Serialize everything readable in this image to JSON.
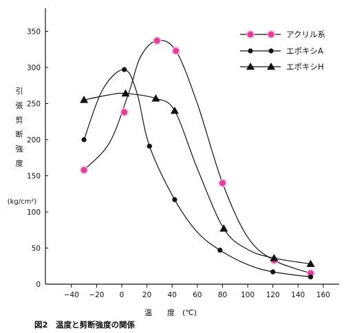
{
  "chart_data": {
    "type": "line",
    "title": "",
    "caption": "図2　温度と剪断強度の関係",
    "xlabel": "温　　度　(℃)",
    "ylabel": "引張剪断強度",
    "ylabel_chars": [
      "引",
      "張",
      "剪",
      "断",
      "強",
      "度"
    ],
    "yunit": "(kg/cm²)",
    "xlim": [
      -50,
      170
    ],
    "ylim": [
      0,
      370
    ],
    "xticks": [
      -40,
      -20,
      0,
      20,
      40,
      60,
      80,
      100,
      120,
      140,
      160
    ],
    "xtick_labels": [
      "−40",
      "−20",
      "0",
      "20",
      "40",
      "60",
      "80",
      "100",
      "120",
      "140",
      "160"
    ],
    "yticks": [
      0,
      50,
      100,
      150,
      200,
      250,
      300,
      350
    ],
    "ytick_labels": [
      "0",
      "50",
      "100",
      "150",
      "200",
      "250",
      "300",
      "350"
    ],
    "legend_position": "top-right",
    "series": [
      {
        "name": "アクリル系",
        "marker": "circle",
        "color": "#e0409a",
        "x": [
          -30,
          2,
          28,
          43,
          80,
          121,
          150
        ],
        "y": [
          158,
          238,
          337,
          323,
          140,
          33,
          15
        ],
        "curve": [
          [
            -30,
            158
          ],
          [
            -10,
            195
          ],
          [
            5,
            262
          ],
          [
            15,
            315
          ],
          [
            28,
            337
          ],
          [
            43,
            323
          ],
          [
            60,
            250
          ],
          [
            80,
            140
          ],
          [
            100,
            65
          ],
          [
            121,
            33
          ],
          [
            150,
            15
          ]
        ]
      },
      {
        "name": "エポキシA",
        "marker": "circle",
        "color": "#111111",
        "x": [
          -30,
          2,
          22,
          42,
          78,
          120,
          150
        ],
        "y": [
          200,
          297,
          191,
          117,
          47,
          17,
          10
        ],
        "curve": [
          [
            -30,
            200
          ],
          [
            -15,
            270
          ],
          [
            2,
            297
          ],
          [
            12,
            265
          ],
          [
            22,
            191
          ],
          [
            42,
            117
          ],
          [
            60,
            72
          ],
          [
            78,
            47
          ],
          [
            100,
            27
          ],
          [
            120,
            17
          ],
          [
            150,
            10
          ]
        ]
      },
      {
        "name": "エポキシH",
        "marker": "triangle",
        "color": "#111111",
        "x": [
          -30,
          3,
          27,
          42,
          81,
          121,
          150
        ],
        "y": [
          255,
          264,
          257,
          240,
          77,
          36,
          28
        ],
        "curve": [
          [
            -30,
            255
          ],
          [
            -10,
            262
          ],
          [
            3,
            264
          ],
          [
            27,
            257
          ],
          [
            42,
            240
          ],
          [
            60,
            160
          ],
          [
            81,
            77
          ],
          [
            100,
            48
          ],
          [
            121,
            36
          ],
          [
            150,
            28
          ]
        ]
      }
    ]
  }
}
